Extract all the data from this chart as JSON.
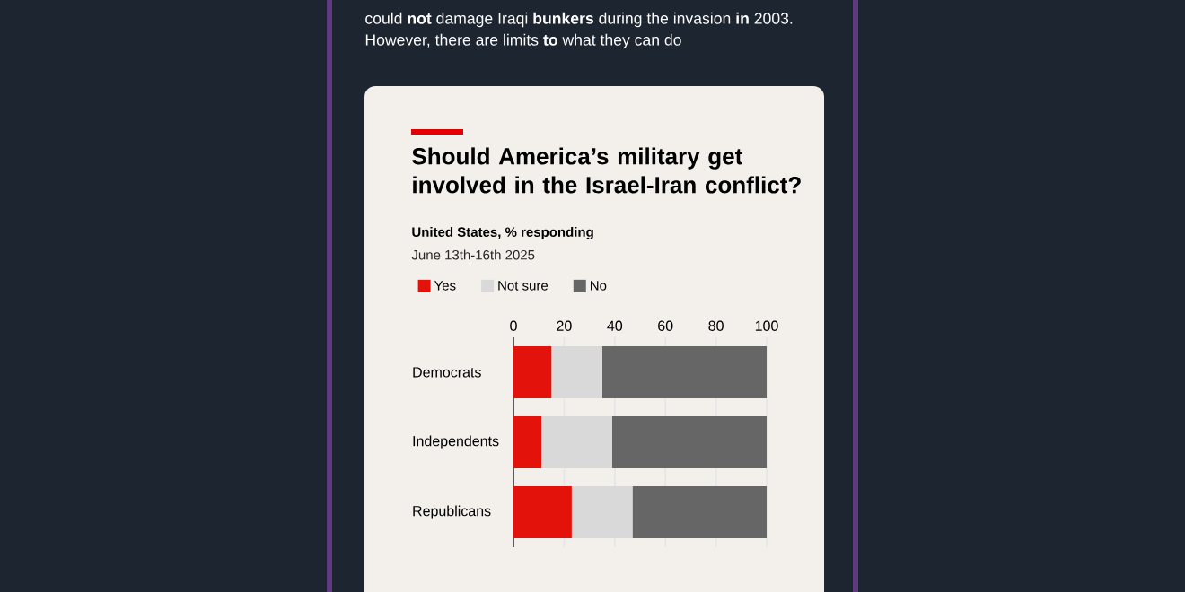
{
  "chart_data": {
    "type": "bar",
    "orientation": "horizontal",
    "stacked": true,
    "title": "Should America’s military get involved in the Israel-Iran conflict?",
    "subtitle": "United States, % responding",
    "annotations": [
      "could **not** damage Iraqi **bunkers** during the invasion **in** 2003.",
      "However, there are limits **to** what they can do",
      "June 13th-16th 2025"
    ],
    "categories": [
      "Democrats",
      "Independents",
      "Republicans"
    ],
    "series": [
      {
        "name": "Yes",
        "color": "#e3120b",
        "values": [
          15,
          11,
          23
        ]
      },
      {
        "name": "Not sure",
        "color": "#d9d9d9",
        "values": [
          20,
          28,
          24
        ]
      },
      {
        "name": "No",
        "color": "#666666",
        "values": [
          65,
          61,
          53
        ]
      }
    ],
    "xlim": [
      0,
      100
    ],
    "xticks": [
      0,
      20,
      40,
      60,
      80,
      100
    ],
    "grid": "x",
    "legend": "top left"
  }
}
